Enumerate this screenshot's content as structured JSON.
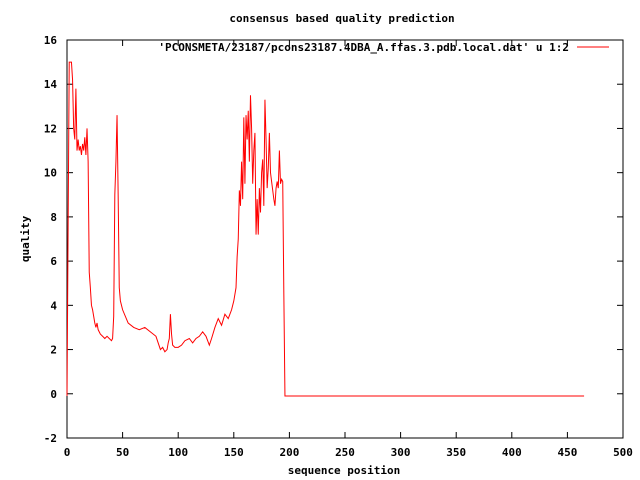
{
  "chart_data": {
    "type": "line",
    "title": "consensus based quality prediction",
    "xlabel": "sequence position",
    "ylabel": "quality",
    "xlim": [
      0,
      500
    ],
    "ylim": [
      -2,
      16
    ],
    "xticks": [
      0,
      50,
      100,
      150,
      200,
      250,
      300,
      350,
      400,
      450,
      500
    ],
    "yticks": [
      -2,
      0,
      2,
      4,
      6,
      8,
      10,
      12,
      14,
      16
    ],
    "grid": false,
    "legend_position": "top-right",
    "series": [
      {
        "name": "'PCONSMETA/23187/pcons23187.4DBA_A.ffas.3.pdb.local.dat' u 1:2",
        "color": "#ff0000",
        "x": [
          0,
          1,
          2,
          3,
          4,
          5,
          6,
          7,
          8,
          9,
          10,
          11,
          12,
          13,
          14,
          15,
          16,
          17,
          18,
          19,
          20,
          21,
          22,
          23,
          24,
          25,
          26,
          27,
          28,
          29,
          30,
          32,
          34,
          36,
          38,
          40,
          41,
          42,
          43,
          44,
          45,
          46,
          47,
          48,
          50,
          55,
          60,
          65,
          70,
          75,
          80,
          82,
          84,
          86,
          88,
          90,
          91,
          92,
          93,
          94,
          95,
          97,
          100,
          103,
          106,
          110,
          113,
          116,
          119,
          122,
          125,
          128,
          130,
          133,
          136,
          139,
          142,
          145,
          148,
          150,
          152,
          153,
          154,
          155,
          156,
          157,
          158,
          159,
          160,
          161,
          162,
          163,
          164,
          165,
          166,
          167,
          168,
          169,
          170,
          171,
          172,
          173,
          174,
          175,
          176,
          177,
          178,
          179,
          180,
          181,
          182,
          183,
          184,
          185,
          186,
          187,
          188,
          189,
          190,
          191,
          192,
          193,
          194,
          195,
          196,
          200,
          250,
          300,
          350,
          400,
          450,
          465
        ],
        "y": [
          -0.1,
          7.5,
          15.0,
          15.0,
          15.0,
          14.2,
          12.0,
          11.5,
          13.8,
          11.0,
          11.5,
          11.0,
          11.2,
          10.8,
          11.3,
          11.0,
          11.6,
          10.8,
          12.0,
          10.5,
          5.5,
          4.8,
          4.0,
          3.8,
          3.5,
          3.2,
          3.0,
          3.2,
          2.9,
          2.8,
          2.7,
          2.6,
          2.5,
          2.6,
          2.5,
          2.4,
          2.5,
          3.5,
          9.0,
          10.5,
          12.6,
          9.0,
          4.8,
          4.2,
          3.8,
          3.2,
          3.0,
          2.9,
          3.0,
          2.8,
          2.6,
          2.3,
          2.0,
          2.1,
          1.9,
          2.0,
          2.3,
          2.5,
          3.6,
          2.7,
          2.2,
          2.1,
          2.1,
          2.2,
          2.4,
          2.5,
          2.3,
          2.5,
          2.6,
          2.8,
          2.6,
          2.2,
          2.5,
          3.0,
          3.4,
          3.1,
          3.6,
          3.4,
          3.8,
          4.2,
          4.8,
          6.2,
          7.0,
          9.2,
          8.5,
          10.5,
          8.8,
          12.5,
          9.5,
          12.6,
          11.5,
          12.8,
          10.5,
          13.5,
          12.0,
          9.5,
          11.0,
          11.8,
          7.2,
          8.8,
          7.2,
          9.3,
          8.2,
          10.0,
          10.6,
          8.5,
          13.3,
          11.5,
          9.3,
          10.2,
          11.8,
          10.0,
          9.6,
          9.2,
          8.8,
          8.5,
          9.3,
          9.6,
          9.3,
          11.0,
          9.5,
          9.7,
          9.6,
          4.5,
          -0.1,
          -0.1,
          -0.1,
          -0.1,
          -0.1,
          -0.1,
          -0.1,
          -0.1
        ]
      }
    ]
  }
}
